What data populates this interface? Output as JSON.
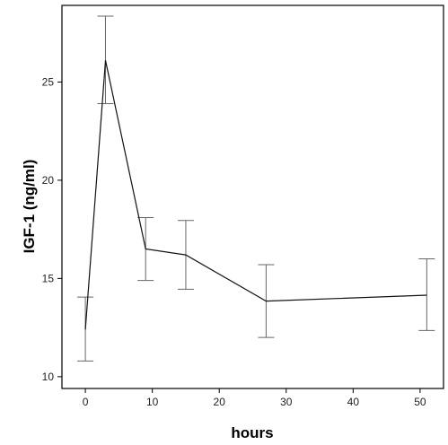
{
  "chart_data": {
    "type": "line",
    "title": "",
    "xlabel": "hours",
    "ylabel": "IGF-1 (ng/ml)",
    "xlim": [
      -3.5,
      53.5
    ],
    "ylim": [
      9.4,
      28.9
    ],
    "x_ticks": [
      0,
      10,
      20,
      30,
      40,
      50
    ],
    "x_tick_labels": [
      "0",
      "10",
      "20",
      "30",
      "40",
      "50"
    ],
    "y_ticks": [
      10,
      15,
      20,
      25
    ],
    "y_tick_labels": [
      "10",
      "15",
      "20",
      "25"
    ],
    "grid": false,
    "legend": "none",
    "series": [
      {
        "x": [
          0,
          3,
          9,
          15,
          27,
          51
        ],
        "y": [
          12.4,
          26.1,
          16.5,
          16.2,
          13.85,
          14.15
        ],
        "error_low": [
          10.8,
          23.9,
          14.9,
          14.45,
          12.0,
          12.35
        ],
        "error_high": [
          14.05,
          28.35,
          18.1,
          17.95,
          15.7,
          16.0
        ]
      }
    ],
    "colors": {
      "line": "#111111",
      "error_bar": "#666666",
      "axis": "#000000"
    }
  }
}
